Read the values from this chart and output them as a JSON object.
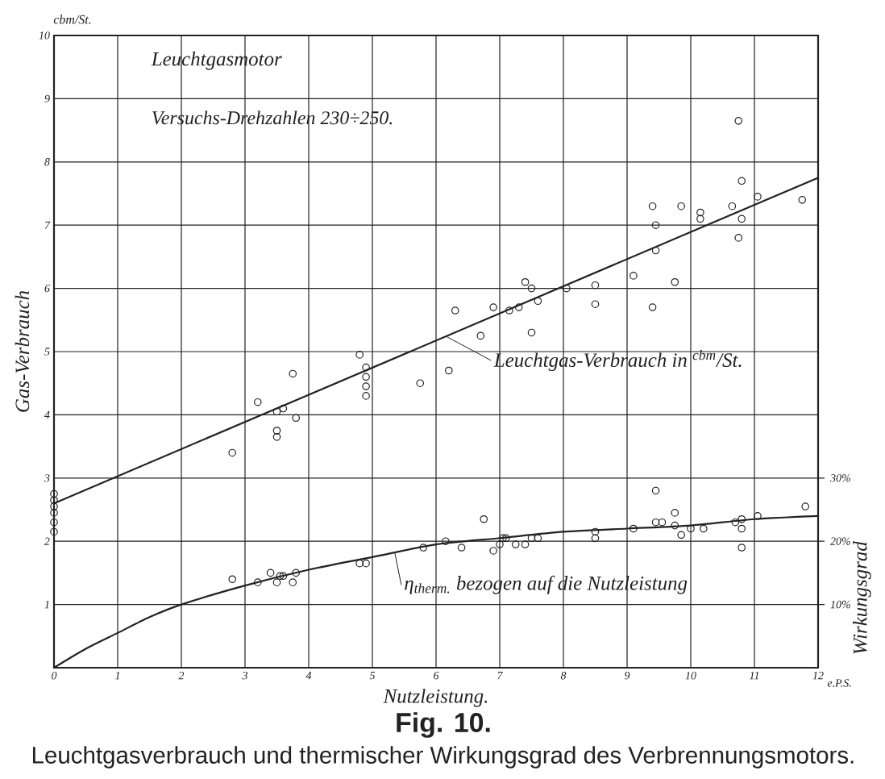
{
  "chart_data": {
    "type": "scatter",
    "title": "Leuchtgasmotor",
    "subtitle": "Versuchs-Drehzahlen 230÷250.",
    "xlabel": "Nutzleistung.",
    "ylabel": "Gas-Verbrauch",
    "y2label": "Wirkungsgrad",
    "annotations": [
      "cbm/St.",
      "e.P.S.",
      "Fig. 10.",
      "Leuchtgasverbrauch und thermischer Wirkungsgrad des Verbrennungsmotors."
    ],
    "xlim": [
      0,
      12
    ],
    "ylim": [
      0,
      10
    ],
    "y2lim": [
      0,
      100
    ],
    "xticks": [
      0,
      1,
      2,
      3,
      4,
      5,
      6,
      7,
      8,
      9,
      10,
      11,
      12
    ],
    "yticks": [
      1,
      2,
      3,
      4,
      5,
      6,
      7,
      8,
      9,
      10
    ],
    "y2ticks": [
      {
        "value": 10,
        "label": "10%"
      },
      {
        "value": 20,
        "label": "20%"
      },
      {
        "value": 30,
        "label": "30%"
      }
    ],
    "grid": true,
    "series": [
      {
        "type": "scatter",
        "color": "#222222",
        "marker": "circle",
        "x": [
          0,
          0,
          0,
          0,
          0,
          0,
          2.8,
          3.2,
          3.5,
          3.6,
          3.8,
          3.5,
          3.5,
          3.75,
          4.8,
          4.9,
          4.9,
          4.9,
          4.9,
          5.75,
          6.2,
          6.3,
          6.7,
          6.9,
          7.15,
          7.3,
          7.4,
          7.5,
          7.6,
          7.5,
          8.05,
          8.5,
          8.5,
          9.1,
          9.4,
          9.75,
          9.4,
          9.45,
          9.85,
          10.15,
          10.15,
          10.65,
          10.8,
          10.8,
          10.75,
          11.05,
          11.75,
          10.75,
          9.45
        ],
        "values": [
          2.75,
          2.65,
          2.55,
          2.45,
          2.3,
          2.15,
          3.4,
          4.2,
          4.05,
          4.1,
          3.95,
          3.75,
          3.65,
          4.65,
          4.95,
          4.75,
          4.6,
          4.45,
          4.3,
          4.5,
          4.7,
          5.65,
          5.25,
          5.7,
          5.65,
          5.7,
          6.1,
          6.0,
          5.8,
          5.3,
          6.0,
          6.05,
          5.75,
          6.2,
          5.7,
          6.1,
          7.3,
          7.0,
          7.3,
          7.2,
          7.1,
          7.3,
          7.7,
          7.1,
          6.8,
          7.45,
          7.4,
          8.65,
          6.6
        ]
      },
      {
        "type": "line",
        "name": "Leuchtgas-Verbrauch in $^{cbm}$/St.",
        "color": "#222222",
        "marker": "none",
        "line_style": "solid",
        "x": [
          0,
          12
        ],
        "values": [
          2.6,
          7.75
        ]
      },
      {
        "type": "scatter",
        "axis": "y2",
        "color": "#222222",
        "marker": "circle",
        "x": [
          2.8,
          3.2,
          3.4,
          3.5,
          3.55,
          3.6,
          3.75,
          3.8,
          4.8,
          4.9,
          5.8,
          6.15,
          6.4,
          6.75,
          6.9,
          7.0,
          7.05,
          7.1,
          7.25,
          7.4,
          7.5,
          7.6,
          8.5,
          8.5,
          9.1,
          9.45,
          9.55,
          9.45,
          9.75,
          9.75,
          9.85,
          10.0,
          10.2,
          10.7,
          10.8,
          10.8,
          10.8,
          11.05,
          11.8
        ],
        "values": [
          14,
          13.5,
          15,
          13.5,
          14.5,
          14.5,
          13.5,
          15,
          16.5,
          16.5,
          19,
          20,
          19,
          23.5,
          18.5,
          19.5,
          20.5,
          20.5,
          19.5,
          19.5,
          20.5,
          20.5,
          21.5,
          20.5,
          22,
          23,
          23,
          28,
          24.5,
          22.5,
          21,
          22,
          22,
          23,
          23.5,
          22,
          19,
          24,
          25.5
        ]
      },
      {
        "type": "line",
        "axis": "y2",
        "name": "η$_{therm.}$ bezogen auf die Nutzleistung",
        "color": "#222222",
        "marker": "none",
        "line_style": "solid",
        "x": [
          0,
          0.5,
          1,
          1.5,
          2,
          3,
          4,
          5,
          6,
          7,
          8,
          9,
          10,
          11,
          12
        ],
        "values": [
          0,
          3,
          5.5,
          8,
          10,
          13,
          15.5,
          17.5,
          19.5,
          20.5,
          21.5,
          22,
          22.5,
          23.5,
          24
        ]
      }
    ]
  }
}
